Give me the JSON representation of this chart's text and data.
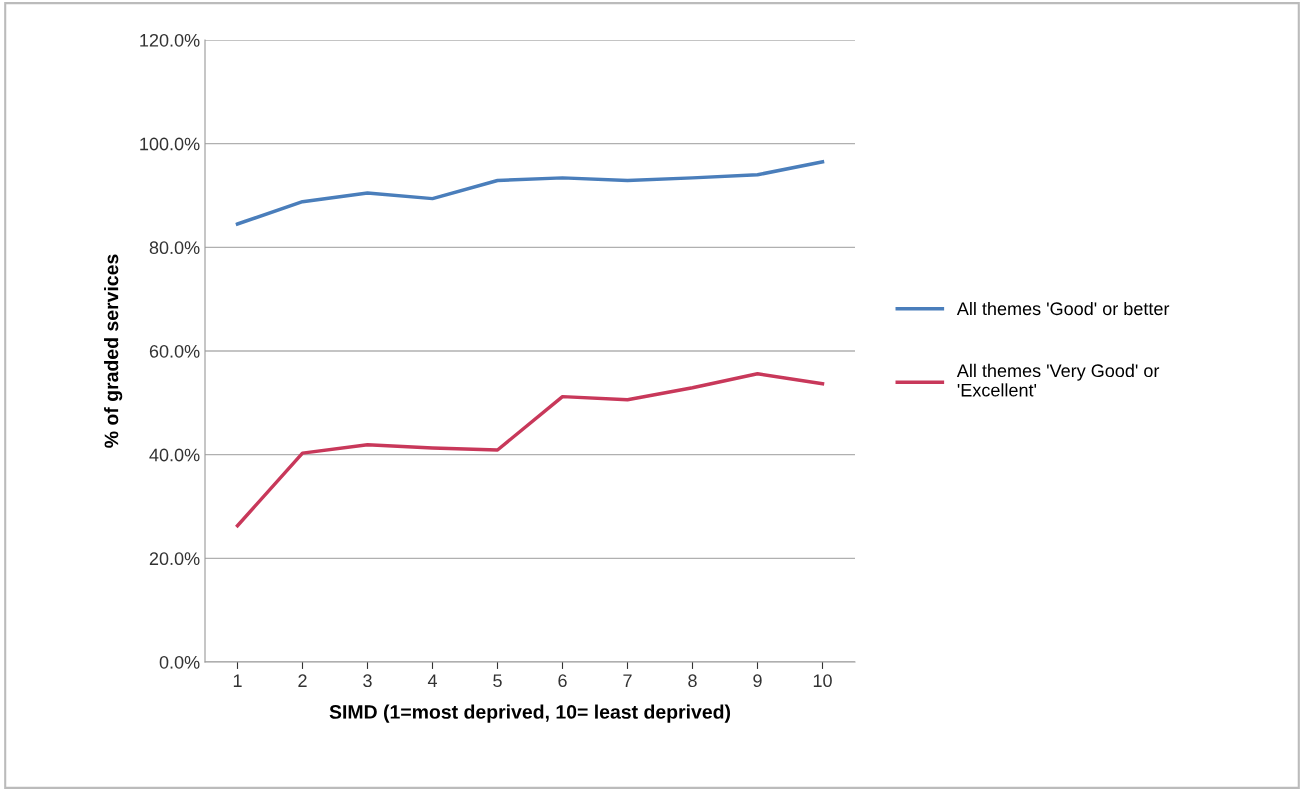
{
  "chart_data": {
    "type": "line",
    "xlabel": "SIMD (1=most deprived, 10= least deprived)",
    "ylabel": "% of graded services",
    "categories": [
      "1",
      "2",
      "3",
      "4",
      "5",
      "6",
      "7",
      "8",
      "9",
      "10"
    ],
    "series": [
      {
        "name": "All themes 'Good' or better",
        "color": "#4a7ebb",
        "values": [
          84.5,
          88.8,
          90.5,
          89.4,
          92.9,
          93.4,
          92.9,
          93.4,
          94.0,
          96.5
        ]
      },
      {
        "name": "All themes 'Very Good' or 'Excellent'",
        "color": "#c8385a",
        "values": [
          26.3,
          40.3,
          41.9,
          41.3,
          40.9,
          51.2,
          50.6,
          52.9,
          55.6,
          53.7
        ]
      }
    ],
    "ylim": [
      0,
      120
    ],
    "yticks": [
      {
        "value": 0,
        "label": "0.0%"
      },
      {
        "value": 20,
        "label": "20.0%"
      },
      {
        "value": 40,
        "label": "40.0%"
      },
      {
        "value": 60,
        "label": "60.0%"
      },
      {
        "value": 80,
        "label": "80.0%"
      },
      {
        "value": 100,
        "label": "100.0%"
      },
      {
        "value": 120,
        "label": "120.0%"
      }
    ],
    "grid": "y",
    "legend": "right",
    "marker": "none",
    "line_style": "solid"
  }
}
